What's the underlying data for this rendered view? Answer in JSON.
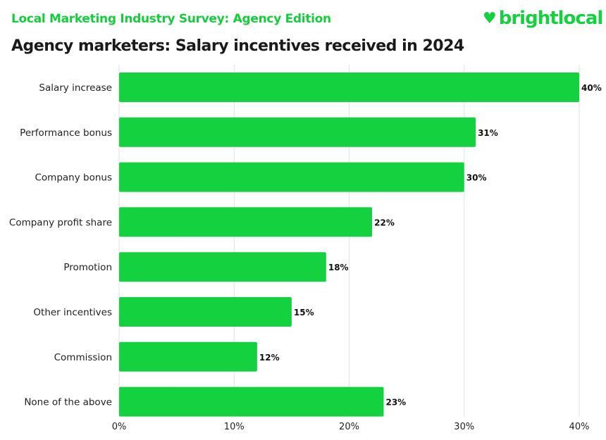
{
  "header": {
    "supertitle": "Local Marketing Industry Survey: Agency Edition",
    "brand": "brightlocal",
    "logo_icon": "heart-pin-icon"
  },
  "chart_data": {
    "type": "bar",
    "orientation": "horizontal",
    "title": "Agency marketers: Salary incentives received in 2024",
    "categories": [
      "Salary increase",
      "Performance bonus",
      "Company bonus",
      "Company profit share",
      "Promotion",
      "Other incentives",
      "Commission",
      "None of the above"
    ],
    "values": [
      40,
      31,
      30,
      22,
      18,
      15,
      12,
      23
    ],
    "data_labels": [
      "40%",
      "31%",
      "30%",
      "22%",
      "18%",
      "15%",
      "12%",
      "23%"
    ],
    "xlim": [
      0,
      40
    ],
    "xticks": [
      0,
      10,
      20,
      30,
      40
    ],
    "xtick_labels": [
      "0%",
      "10%",
      "20%",
      "30%",
      "40%"
    ],
    "grid": true,
    "bar_color": "#14d13f"
  }
}
